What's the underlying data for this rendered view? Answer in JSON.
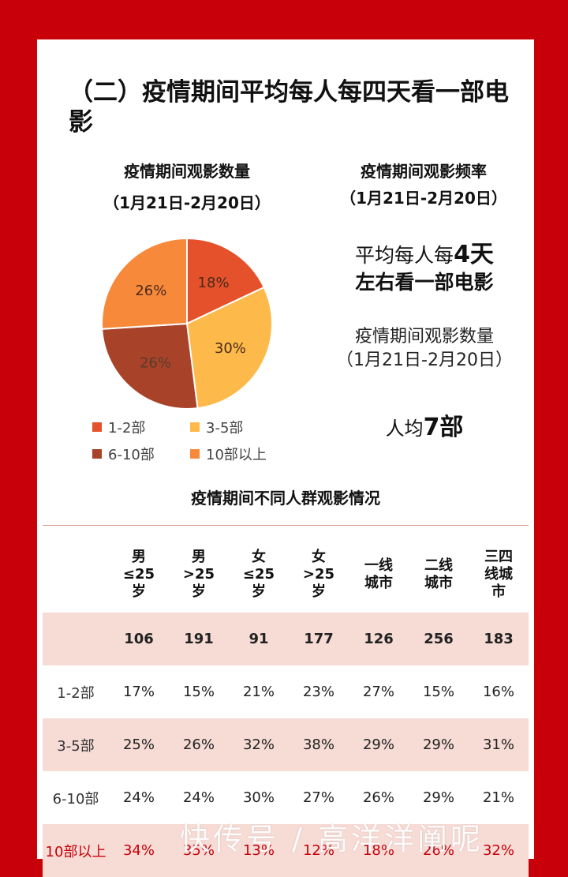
{
  "title": "（二）疫情期间平均每人每四天看一部电影",
  "pie_chart": {
    "title_line1": "疫情期间观影数量",
    "title_line2": "（1月21日-2月20日）"
  },
  "right_panel": {
    "title_line1": "疫情期间观影频率",
    "title_line2": "（1月21日-2月20日）",
    "freq_line1_prefix": "平均每人每",
    "freq_line1_value": "4天",
    "freq_line2": "左右看一部电影",
    "count_line1": "疫情期间观影数量",
    "count_line2": "（1月21日-2月20日）",
    "avg_prefix": "人均",
    "avg_value": "7部"
  },
  "chart_data": {
    "type": "pie",
    "title": "疫情期间观影数量（1月21日-2月20日）",
    "slices": [
      {
        "label": "1-2部",
        "value": 18,
        "display": "18%",
        "color": "#e5512b"
      },
      {
        "label": "3-5部",
        "value": 30,
        "display": "30%",
        "color": "#fdb94a"
      },
      {
        "label": "6-10部",
        "value": 26,
        "display": "26%",
        "color": "#a8432a"
      },
      {
        "label": "10部以上",
        "value": 26,
        "display": "26%",
        "color": "#f7893b"
      }
    ],
    "legend_position": "bottom"
  },
  "table": {
    "title": "疫情期间不同人群观影情况",
    "columns": [
      [
        "男",
        "≤25",
        "岁"
      ],
      [
        "男",
        ">25",
        "岁"
      ],
      [
        "女",
        "≤25",
        "岁"
      ],
      [
        "女",
        ">25",
        "岁"
      ],
      [
        "一线",
        "城市"
      ],
      [
        "二线",
        "城市"
      ],
      [
        "三四",
        "线城",
        "市"
      ]
    ],
    "rows": [
      {
        "label": "",
        "values": [
          "106",
          "191",
          "91",
          "177",
          "126",
          "256",
          "183"
        ]
      },
      {
        "label": "1-2部",
        "values": [
          "17%",
          "15%",
          "21%",
          "23%",
          "27%",
          "15%",
          "16%"
        ]
      },
      {
        "label": "3-5部",
        "values": [
          "25%",
          "26%",
          "32%",
          "38%",
          "29%",
          "29%",
          "31%"
        ]
      },
      {
        "label": "6-10部",
        "values": [
          "24%",
          "24%",
          "30%",
          "27%",
          "26%",
          "29%",
          "21%"
        ]
      },
      {
        "label": "10部以上",
        "values": [
          "34%",
          "35%",
          "13%",
          "12%",
          "18%",
          "26%",
          "32%"
        ]
      }
    ]
  },
  "watermark": "快传号 / 高洋洋阐呢"
}
